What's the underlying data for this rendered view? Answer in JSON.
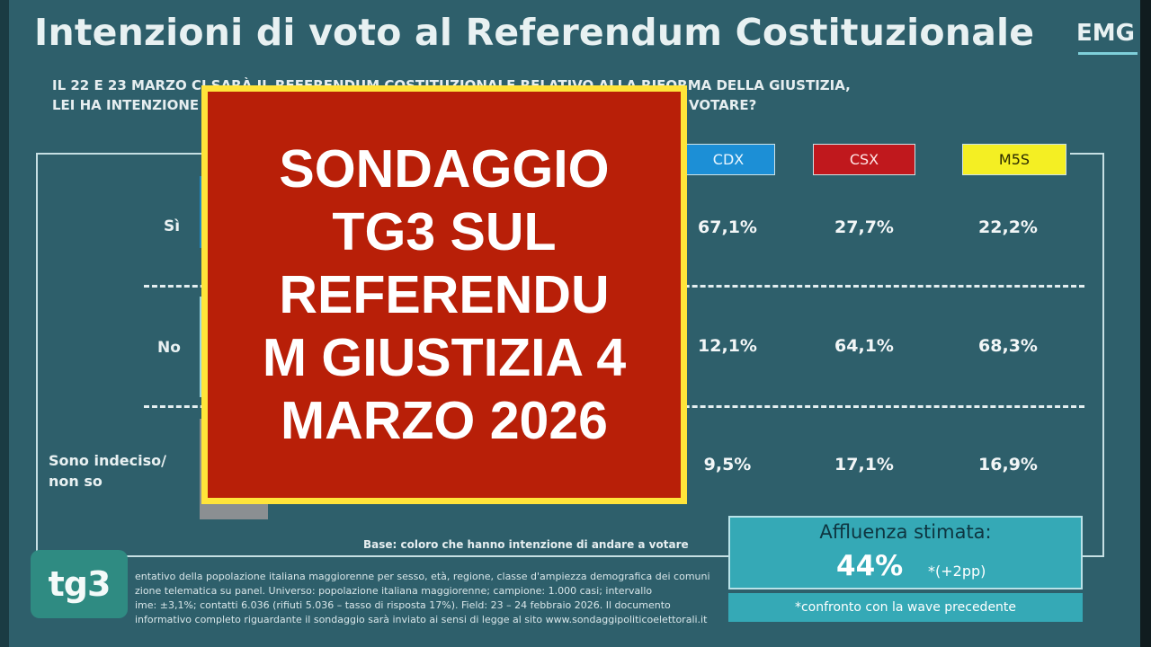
{
  "header": {
    "title": "Intenzioni di voto al Referendum Costituzionale",
    "logo": "EMG"
  },
  "question": {
    "line1": "IL 22 E 23 MARZO CI SARÀ IL REFERENDUM COSTITUZIONALE RELATIVO ALLA RIFORMA DELLA GIUSTIZIA,",
    "line2": "LEI HA INTENZIONE DI VOTARE SÌ O NO? O NON HA ANCORA DECISO / NON SA SE DI VOTARE?"
  },
  "columns": [
    {
      "label": "CDX",
      "color": "#1c8fd6"
    },
    {
      "label": "CSX",
      "color": "#c0181d"
    },
    {
      "label": "M5S",
      "color": "#f4ef23"
    }
  ],
  "rows": [
    {
      "label": "Sì",
      "values": [
        "67,1%",
        "27,7%",
        "22,2%"
      ]
    },
    {
      "label": "No",
      "values": [
        "12,1%",
        "64,1%",
        "68,3%"
      ]
    },
    {
      "label_line1": "Sono indeciso/",
      "label_line2": "non so",
      "values": [
        "9,5%",
        "17,1%",
        "16,9%"
      ]
    }
  ],
  "base_note": "Base: coloro che hanno intenzione di andare a votare",
  "footnote": {
    "line1": "entativo della popolazione italiana maggiorenne per sesso, età, regione, classe d'ampiezza demografica dei comuni",
    "line2": "zione telematica su panel. Universo: popolazione italiana maggiorenne; campione: 1.000 casi; intervallo",
    "line3": "ime: ±3,1%; contatti 6.036 (rifiuti 5.036 – tasso di risposta 17%). Field: 23 – 24 febbraio 2026. Il documento",
    "line4": "informativo completo riguardante il sondaggio sarà inviato ai sensi di legge al sito www.sondaggipoliticoelettorali.it"
  },
  "turnout": {
    "title": "Affluenza stimata:",
    "value": "44%",
    "delta": "*(+2pp)",
    "comparison": "*confronto con la wave precedente"
  },
  "channel_logo": "tg3",
  "overlay": {
    "line1": "SONDAGGIO",
    "line2": "TG3 SUL",
    "line3": "REFERENDU",
    "line4": "M GIUSTIZIA 4",
    "line5": "MARZO 2026"
  }
}
